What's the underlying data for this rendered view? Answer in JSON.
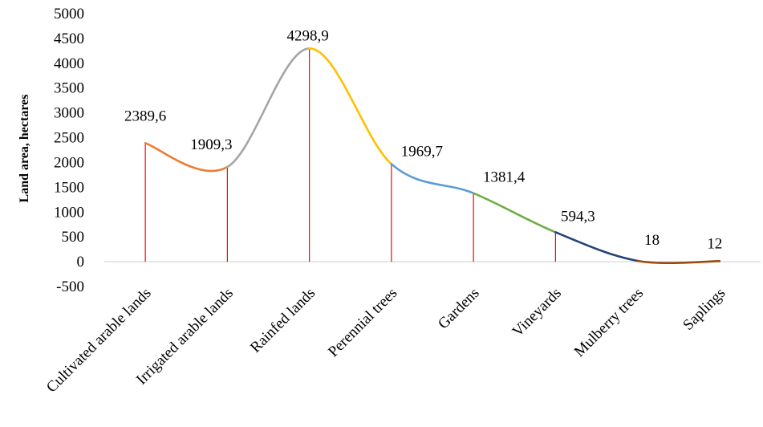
{
  "chart_data": {
    "type": "line",
    "title": "",
    "xlabel": "",
    "ylabel": "Land area, hectares",
    "ylim": [
      -500,
      5000
    ],
    "yticks": [
      "5000",
      "4500",
      "4000",
      "3500",
      "3000",
      "2500",
      "2000",
      "1500",
      "1000",
      "500",
      "0",
      "-500"
    ],
    "ytick_values": [
      5000,
      4500,
      4000,
      3500,
      3000,
      2500,
      2000,
      1500,
      1000,
      500,
      0,
      -500
    ],
    "categories": [
      "Cultivated  arable  lands",
      "Irrigated  arable  lands",
      "Rainfed  lands",
      "Perennial  trees",
      "Gardens",
      "Vineyards",
      "Mulberry  trees",
      "Saplings"
    ],
    "values": [
      2389.6,
      1909.3,
      4298.9,
      1969.7,
      1381.4,
      594.3,
      18,
      12
    ],
    "data_labels": [
      "2389,6",
      "1909,3",
      "4298,9",
      "1969,7",
      "1381,4",
      "594,3",
      "18",
      "12"
    ],
    "smoothed": true,
    "drop_lines": true,
    "grid": false,
    "legend": "none",
    "colors": {
      "segments": [
        "#ED7D31",
        "#A5A5A5",
        "#FFC000",
        "#5B9BD5",
        "#70AD47",
        "#264478",
        "#9E480E"
      ],
      "drop_line": "#FF0000",
      "axis": "#D9D9D9"
    }
  }
}
